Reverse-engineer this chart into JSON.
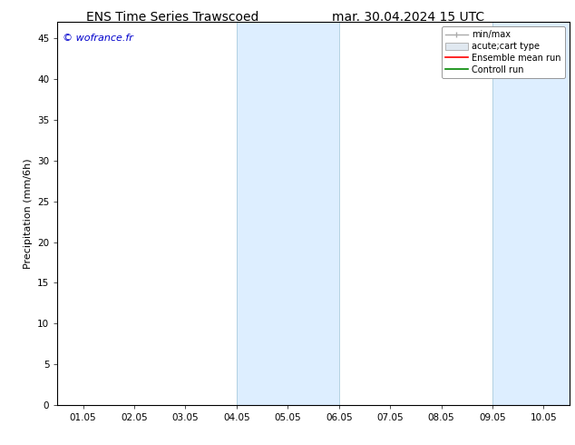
{
  "title_left": "ENS Time Series Trawscoed",
  "title_right": "mar. 30.04.2024 15 UTC",
  "ylabel": "Precipitation (mm/6h)",
  "watermark": "© wofrance.fr",
  "watermark_color": "#0000cc",
  "ylim_min": 0,
  "ylim_max": 47,
  "yticks": [
    0,
    5,
    10,
    15,
    20,
    25,
    30,
    35,
    40,
    45
  ],
  "xtick_positions": [
    0,
    1,
    2,
    3,
    4,
    5,
    6,
    7,
    8,
    9
  ],
  "xtick_labels": [
    "01.05",
    "02.05",
    "03.05",
    "04.05",
    "05.05",
    "06.05",
    "07.05",
    "08.05",
    "09.05",
    "10.05"
  ],
  "xlim_start": -0.5,
  "xlim_end": 9.5,
  "shade_band1_x1": 3.0,
  "shade_band1_x2": 5.0,
  "shade_band2_x1": 8.0,
  "shade_band2_x2": 9.5,
  "shade_color": "#ddeeff",
  "shade_edge_color": "#aaccdd",
  "legend_labels": [
    "min/max",
    "acute;cart type",
    "Ensemble mean run",
    "Controll run"
  ],
  "legend_line_colors": [
    "#aaaaaa",
    "#cccccc",
    "#ff0000",
    "#008800"
  ],
  "bg_color": "#ffffff",
  "title_fontsize": 10,
  "ylabel_fontsize": 8,
  "tick_fontsize": 7.5,
  "watermark_fontsize": 8,
  "legend_fontsize": 7
}
